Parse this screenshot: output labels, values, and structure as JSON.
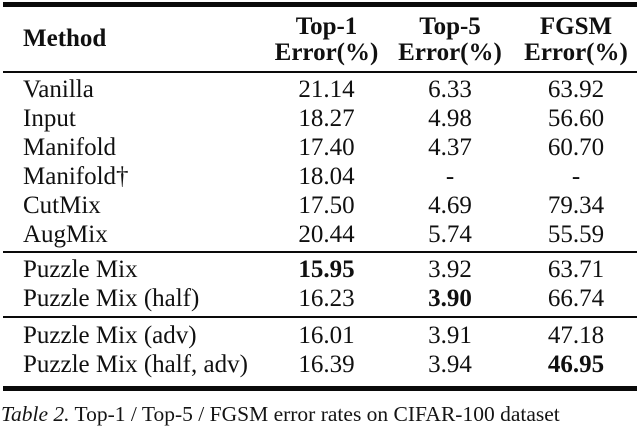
{
  "page": {
    "background": "#ffffff",
    "text_color": "#101010",
    "rule_color": "#0a0a0a"
  },
  "table": {
    "header": {
      "method": "Method",
      "columns": [
        {
          "line1": "Top-1",
          "line2": "Error(%)"
        },
        {
          "line1": "Top-5",
          "line2": "Error(%)"
        },
        {
          "line1": "FGSM",
          "line2": "Error(%)"
        }
      ]
    },
    "groups": [
      {
        "rows": [
          {
            "method": "Vanilla",
            "top1": "21.14",
            "top5": "6.33",
            "fgsm": "63.92"
          },
          {
            "method": "Input",
            "top1": "18.27",
            "top5": "4.98",
            "fgsm": "56.60"
          },
          {
            "method": "Manifold",
            "top1": "17.40",
            "top5": "4.37",
            "fgsm": "60.70"
          },
          {
            "method": "Manifold†",
            "top1": "18.04",
            "top5": "-",
            "fgsm": "-"
          },
          {
            "method": "CutMix",
            "top1": "17.50",
            "top5": "4.69",
            "fgsm": "79.34"
          },
          {
            "method": "AugMix",
            "top1": "20.44",
            "top5": "5.74",
            "fgsm": "55.59"
          }
        ]
      },
      {
        "rows": [
          {
            "method": "Puzzle Mix",
            "top1": "15.95",
            "top5": "3.92",
            "fgsm": "63.71"
          },
          {
            "method": "Puzzle Mix (half)",
            "top1": "16.23",
            "top5": "3.90",
            "fgsm": "66.74"
          }
        ]
      },
      {
        "rows": [
          {
            "method": "Puzzle Mix (adv)",
            "top1": "16.01",
            "top5": "3.91",
            "fgsm": "47.18"
          },
          {
            "method": "Puzzle Mix (half, adv)",
            "top1": "16.39",
            "top5": "3.94",
            "fgsm": "46.95"
          }
        ]
      }
    ]
  },
  "caption": {
    "label": "Table 2.",
    "text": "Top-1 / Top-5 / FGSM error rates on CIFAR-100 dataset"
  }
}
